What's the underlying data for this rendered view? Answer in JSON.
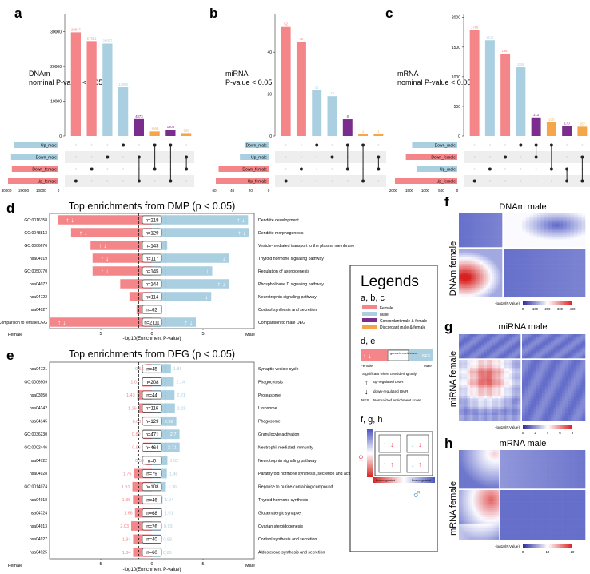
{
  "colors": {
    "female": "#f4868a",
    "male": "#a9cfe1",
    "concordant": "#7b2d8e",
    "discordant": "#f5a54a",
    "dot": "#222222",
    "stripe": "#eeeeee",
    "heat_bg": "#4a55c0",
    "heat_hot": "#d8201f"
  },
  "panel_letters": {
    "a": "a",
    "b": "b",
    "c": "c",
    "d": "d",
    "e": "e",
    "f": "f",
    "g": "g",
    "h": "h"
  },
  "chart_data": [
    {
      "id": "a",
      "type": "bar",
      "title": "DNAm",
      "subtitle": "nominal P-value < 0.05",
      "ylim": [
        0,
        35000
      ],
      "yticks": [
        0,
        10000,
        20000,
        30000
      ],
      "values": [
        29847,
        27321,
        26597,
        14050,
        4873,
        1303,
        1805,
        828
      ],
      "labels": [
        "29847",
        "27321",
        "26597",
        "14050",
        "4873",
        "1303",
        "1805",
        "828"
      ],
      "bar_groups": [
        "female",
        "female",
        "male",
        "male",
        "concordant",
        "discordant",
        "concordant",
        "discordant"
      ],
      "sets": [
        "Up_male",
        "Down_male",
        "Down_female",
        "Up_female"
      ],
      "set_groups": [
        "male",
        "male",
        "female",
        "female"
      ],
      "set_sizes": [
        29000,
        31000,
        30500,
        33000
      ],
      "set_axis_ticks": [
        "30000",
        "20000",
        "10000",
        "0"
      ],
      "membership": [
        [
          3
        ],
        [
          2
        ],
        [
          1
        ],
        [
          0
        ],
        [
          1,
          3
        ],
        [
          0,
          2
        ],
        [
          0,
          3
        ],
        [
          1,
          2
        ]
      ]
    },
    {
      "id": "b",
      "type": "bar",
      "title": "miRNA",
      "subtitle": "P-value < 0.05",
      "ylim": [
        0,
        58
      ],
      "yticks": [
        0,
        20,
        40
      ],
      "values": [
        52,
        45,
        22,
        19,
        8,
        1,
        1
      ],
      "labels": [
        "52",
        "45",
        "22",
        "19",
        "8",
        "1",
        "1"
      ],
      "bar_groups": [
        "female",
        "female",
        "male",
        "male",
        "concordant",
        "discordant",
        "discordant"
      ],
      "sets": [
        "Down_male",
        "Up_male",
        "Down_female",
        "Up_female"
      ],
      "set_groups": [
        "male",
        "male",
        "female",
        "female"
      ],
      "set_sizes": [
        26,
        31,
        54,
        57
      ],
      "set_axis_ticks": [
        "60",
        "40",
        "20",
        "0"
      ],
      "membership": [
        [
          3
        ],
        [
          2
        ],
        [
          0
        ],
        [
          1
        ],
        [
          0,
          2
        ],
        [
          0,
          3
        ],
        [
          1,
          2
        ]
      ]
    },
    {
      "id": "c",
      "type": "bar",
      "title": "mRNA",
      "subtitle": "nominal P-value < 0.05",
      "ylim": [
        0,
        2050
      ],
      "yticks": [
        0,
        500,
        1000,
        1500,
        2000
      ],
      "values": [
        1786,
        1615,
        1387,
        1159,
        313,
        235,
        170,
        157
      ],
      "labels": [
        "1786",
        "1615",
        "1387",
        "1159",
        "313",
        "235",
        "170",
        "157"
      ],
      "bar_groups": [
        "female",
        "male",
        "female",
        "male",
        "concordant",
        "discordant",
        "concordant",
        "discordant"
      ],
      "sets": [
        "Down_male",
        "Down_female",
        "Up_male",
        "Up_female"
      ],
      "set_groups": [
        "male",
        "female",
        "male",
        "female"
      ],
      "set_sizes": [
        1450,
        1650,
        1300,
        2000
      ],
      "set_axis_ticks": [
        "2000",
        "1500",
        "1000",
        "500",
        "0"
      ],
      "membership": [
        [
          3
        ],
        [
          2
        ],
        [
          1
        ],
        [
          0
        ],
        [
          0,
          1
        ],
        [
          0,
          2
        ],
        [
          2,
          3
        ],
        [
          1,
          3
        ]
      ]
    },
    {
      "id": "d",
      "type": "bar",
      "title": "Top enrichments from DMP (p < 0.05)",
      "xlabel": "-log10(Enrichment P-value)",
      "left_label": "Female",
      "right_label": "Male",
      "xlim": [
        -10,
        10
      ],
      "xticks": [
        -5,
        0,
        5
      ],
      "xtick_labels": [
        "5",
        "0",
        "5"
      ],
      "threshold": 1.3,
      "rows": [
        {
          "id": "GO:0016358",
          "term": "Dendrite development",
          "female": 9.2,
          "male": 9.4,
          "n": "n=218",
          "fa": "↑ ↓",
          "ma": "↑ ↓"
        },
        {
          "id": "GO:0048813",
          "term": "Dendrite morphogenesis",
          "female": 7.9,
          "male": 9.5,
          "n": "n=129",
          "fa": "↑ ↓",
          "ma": "↑ ↓"
        },
        {
          "id": "GO:0006676",
          "term": "Vesicle-mediated transport to the plasma membrane",
          "female": 6.0,
          "male": 1.5,
          "n": "n=143",
          "fa": "↑ ↓",
          "ma": ""
        },
        {
          "id": "hsa04919",
          "term": "Thyroid hormone signaling pathway",
          "female": 5.8,
          "male": 7.5,
          "n": "n=117",
          "fa": "↑ ↓",
          "ma": "↓"
        },
        {
          "id": "GO:0050770",
          "term": "Regulation of axonogenesis",
          "female": 5.8,
          "male": 5.9,
          "n": "n=145",
          "fa": "↑ ↓",
          "ma": "↓"
        },
        {
          "id": "hsa04072",
          "term": "Phospholipase D signaling pathway",
          "female": 3.1,
          "male": 7.5,
          "n": "n=144",
          "fa": "",
          "ma": "↑ ↓"
        },
        {
          "id": "hsa04722",
          "term": "Neurotrophin signaling pathway",
          "female": 2.2,
          "male": 5.8,
          "n": "n=114",
          "fa": "",
          "ma": "↓"
        },
        {
          "id": "hsa04927",
          "term": "Cortisol synthesis and secretion",
          "female": 1.5,
          "male": 1.0,
          "n": "n=62",
          "fa": "",
          "ma": ""
        },
        {
          "id": "Comparison to female DEG",
          "term": "Comparison to male DEG",
          "female": 10.0,
          "male": 4.3,
          "n": "n=2111",
          "fa": "↑ ↓",
          "ma": "↑ ↓"
        }
      ]
    },
    {
      "id": "e",
      "type": "bar",
      "title": "Top enrichments from DEG (p < 0.05)",
      "xlabel": "-log10(Enrichment P-value)",
      "left_label": "Female",
      "right_label": "Male",
      "xlim": [
        -10,
        10
      ],
      "xticks": [
        -5,
        0,
        5
      ],
      "xtick_labels": [
        "5",
        "0",
        "5"
      ],
      "threshold": 1.3,
      "rows": [
        {
          "id": "hsa04721",
          "term": "Synaptic vesicle cycle",
          "female": 0.56,
          "male": 1.86,
          "fl": "0.56",
          "ml": "1.86",
          "n": "n=45"
        },
        {
          "id": "GO:0006909",
          "term": "Phagocytosis",
          "female": 1.01,
          "male": 2.14,
          "fl": "1.01",
          "ml": "2.14",
          "n": "n=208"
        },
        {
          "id": "hsa03050",
          "term": "Proteasome",
          "female": 1.43,
          "male": 2.21,
          "fl": "1.43",
          "ml": "2.21",
          "n": "n=44"
        },
        {
          "id": "hsa04142",
          "term": "Lysosome",
          "female": 1.26,
          "male": 2.25,
          "fl": "1.26",
          "ml": "2.25",
          "n": "n=116"
        },
        {
          "id": "hsa04145",
          "term": "Phagosome",
          "female": 0.83,
          "male": 2.39,
          "fl": "0.83",
          "ml": "2.39",
          "n": "n=129"
        },
        {
          "id": "GO:0036230",
          "term": "Granulocyte activation",
          "female": 0.89,
          "male": 2.7,
          "fl": "0.89",
          "ml": "2.7",
          "n": "n=471"
        },
        {
          "id": "GO:0002446",
          "term": "Neutrophil mediated immunity",
          "female": 0.86,
          "male": 2.71,
          "fl": "0.86",
          "ml": "2.71",
          "n": "n=464"
        },
        {
          "id": "hsa04722",
          "term": "Neurotrophin signaling pathway",
          "female": 0.56,
          "male": 1.52,
          "fl": "0.56",
          "ml": "1.52",
          "n": "n=0"
        },
        {
          "id": "hsa04928",
          "term": "Parathyroid hormone synthesis, secretion and action",
          "female": 1.76,
          "male": 1.46,
          "fl": "1.76",
          "ml": "1.46",
          "n": "n=79"
        },
        {
          "id": "GO:0014074",
          "term": "Reponse to purine-containing compound",
          "female": 1.91,
          "male": 1.36,
          "fl": "1.91",
          "ml": "1.36",
          "n": "n=108"
        },
        {
          "id": "hsa04918",
          "term": "Thyroid hormone synthesis",
          "female": 1.85,
          "male": 1.04,
          "fl": "1.85",
          "ml": "1.04",
          "n": "n=46"
        },
        {
          "id": "hsa04724",
          "term": "Glutamatergic synapse",
          "female": 1.66,
          "male": 1.01,
          "fl": "1.66",
          "ml": "1.01",
          "n": "n=68"
        },
        {
          "id": "hsa04913",
          "term": "Ovarian steroidogenesis",
          "female": 2.03,
          "male": 0.93,
          "fl": "2.03",
          "ml": "0.93",
          "n": "n=26"
        },
        {
          "id": "hsa04927",
          "term": "Cortisol synthesis and secretion",
          "female": 1.84,
          "male": 0.88,
          "fl": "1.84",
          "ml": "0.88",
          "n": "n=40"
        },
        {
          "id": "hsa04925",
          "term": "Aldosterone synthesis and secretion",
          "female": 1.84,
          "male": 0.86,
          "fl": "1.84",
          "ml": "0.86",
          "n": "n=60"
        }
      ]
    },
    {
      "id": "f",
      "type": "heatmap",
      "title": "DNAm male",
      "ylabel": "DNAm female",
      "colorbar_label": "-log10(P.Value)",
      "colorbar_ticks": [
        "0",
        "100",
        "200",
        "300",
        "400"
      ],
      "pattern": "dnam"
    },
    {
      "id": "g",
      "type": "heatmap",
      "title": "miRNA male",
      "ylabel": "miRNA female",
      "colorbar_label": "-log10(P.Value)",
      "colorbar_ticks": [
        "0",
        "2",
        "4",
        "6",
        "8"
      ],
      "pattern": "mirna"
    },
    {
      "id": "h",
      "type": "heatmap",
      "title": "mRNA male",
      "ylabel": "mRNA female",
      "colorbar_label": "-log10(P.Value)",
      "colorbar_ticks": [
        "0",
        "10",
        "20"
      ],
      "pattern": "mrna"
    }
  ],
  "legend": {
    "title": "Legends",
    "abc_heading": "a, b, c",
    "abc_items": [
      "Female",
      "Male",
      "Concordant male & female",
      "Discordant male & female"
    ],
    "de_heading": "d, e",
    "de_box": "genes in enrichment",
    "de_nes": "NES",
    "de_female": "Female",
    "de_male": "Male",
    "de_sig": "Significant when considering only:",
    "de_up": "up-regulated DMR",
    "de_down": "down-regulated DMR",
    "de_nes_def": "Normalized enrichment score",
    "fgh_heading": "f, g, h",
    "fgh_bottom_left": "Downregulated",
    "fgh_bottom_right": "Downregulated"
  }
}
